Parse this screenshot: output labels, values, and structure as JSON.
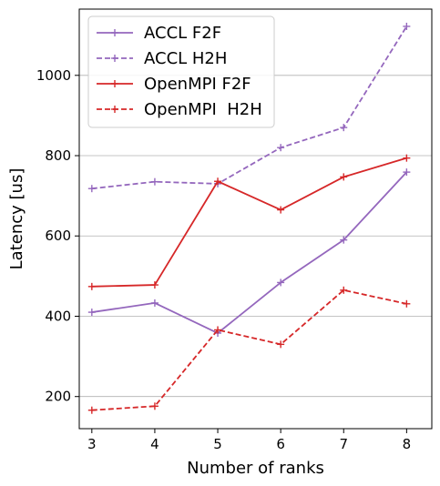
{
  "chart_data": {
    "type": "line",
    "xlabel": "Number of ranks",
    "ylabel": "Latency [us]",
    "x": [
      3,
      4,
      5,
      6,
      7,
      8
    ],
    "xticks": [
      3,
      4,
      5,
      6,
      7,
      8
    ],
    "yticks": [
      200,
      400,
      600,
      800,
      1000
    ],
    "xlim": [
      2.8,
      8.4
    ],
    "ylim": [
      120,
      1165
    ],
    "grid": "horizontal",
    "legend_position": "top-left",
    "series": [
      {
        "name": "ACCL F2F",
        "color": "#9467bd",
        "linestyle": "solid",
        "marker": "plus",
        "values": [
          410,
          433,
          358,
          484,
          590,
          759
        ]
      },
      {
        "name": "ACCL H2H",
        "color": "#9467bd",
        "linestyle": "dashed",
        "marker": "plus",
        "values": [
          718,
          735,
          730,
          820,
          870,
          1122
        ]
      },
      {
        "name": "OpenMPI F2F",
        "color": "#d62728",
        "linestyle": "solid",
        "marker": "plus",
        "values": [
          474,
          478,
          736,
          665,
          747,
          794
        ]
      },
      {
        "name": "OpenMPI  H2H",
        "color": "#d62728",
        "linestyle": "dashed",
        "marker": "plus",
        "values": [
          166,
          176,
          366,
          330,
          465,
          431
        ]
      }
    ]
  }
}
